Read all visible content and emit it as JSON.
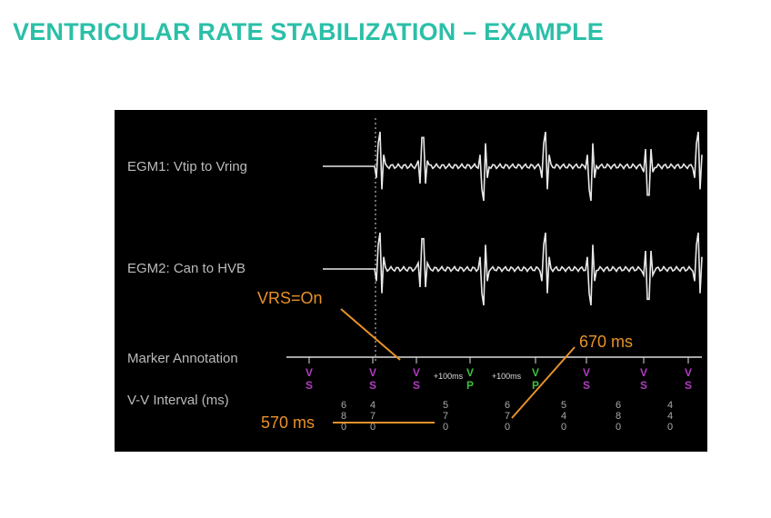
{
  "title": "VENTRICULAR RATE STABILIZATION – EXAMPLE",
  "figure": {
    "labels": [
      "EGM1: Vtip to Vring",
      "EGM2: Can to HVB",
      "Marker Annotation",
      "V-V Interval (ms)"
    ],
    "markers": [
      "VS",
      "VS",
      "VS",
      "VP",
      "VP",
      "VS",
      "VS",
      "VS"
    ],
    "rate_notes": [
      "+100ms",
      "+100ms"
    ],
    "intervals": [
      "680",
      "470",
      "570",
      "670",
      "540",
      "680",
      "440"
    ]
  },
  "annotations": {
    "vrs": "VRS=On",
    "interval_670": "670 ms",
    "interval_570": "570 ms"
  }
}
